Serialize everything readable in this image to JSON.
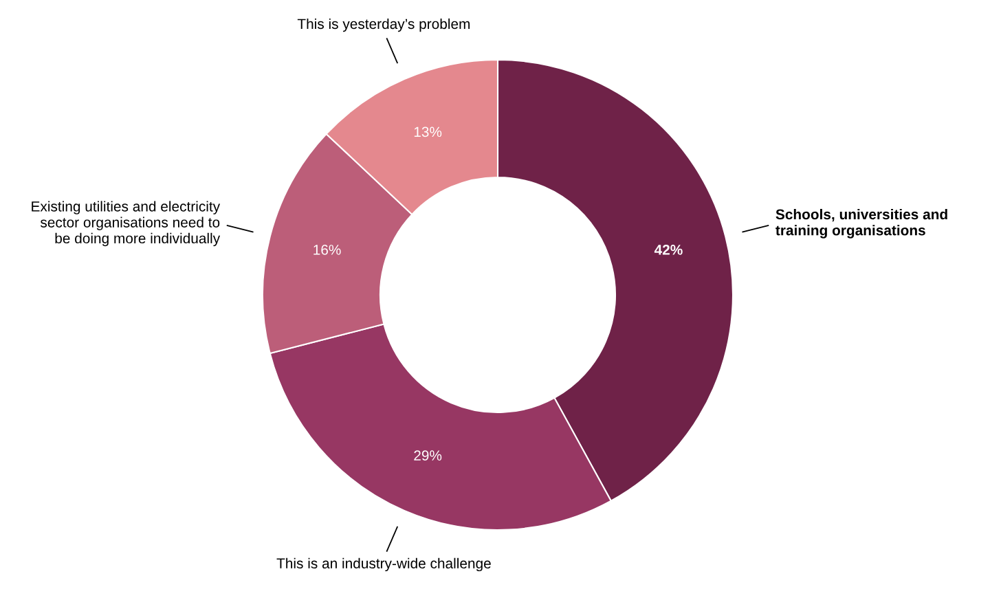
{
  "chart_data": {
    "type": "donut",
    "categories": [
      "Schools, universities and training organisations",
      "This is an industry-wide challenge",
      "Existing utilities and electricity sector organisations need to be doing more individually",
      "This is yesterday’s problem"
    ],
    "values": [
      42,
      29,
      16,
      13
    ],
    "colors": [
      "#6f2248",
      "#973763",
      "#bc5e79",
      "#e4888e"
    ],
    "value_labels": [
      "42%",
      "29%",
      "16%",
      "13%"
    ]
  }
}
